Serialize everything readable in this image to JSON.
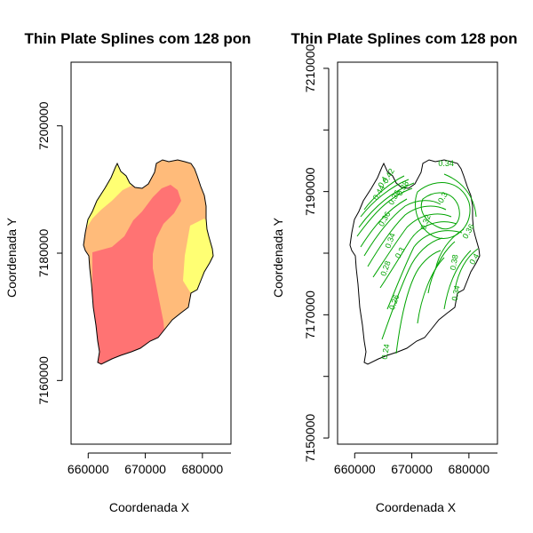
{
  "chart_data": [
    {
      "type": "heatmap",
      "title": "Thin Plate Splines com 128 pon",
      "xlabel": "Coordenada X",
      "ylabel": "Coordenada Y",
      "xlim": [
        657000,
        685000
      ],
      "ylim": [
        7150000,
        7210000
      ],
      "x_ticks": [
        660000,
        670000,
        680000
      ],
      "y_ticks": [
        7160000,
        7180000,
        7200000
      ],
      "colors": {
        "low": "#ff7373",
        "mid": "#ffbb7a",
        "high": "#ffff73"
      },
      "zones": [
        {
          "level": "high",
          "color": "#ffff73"
        },
        {
          "level": "mid",
          "color": "#ffbb7a"
        },
        {
          "level": "low",
          "color": "#ff7373"
        }
      ]
    },
    {
      "type": "contour",
      "title": "Thin Plate Splines com 128 pon",
      "xlabel": "Coordenada X",
      "ylabel": "Coordenada Y",
      "xlim": [
        657000,
        685000
      ],
      "ylim": [
        7149000,
        7211000
      ],
      "x_ticks": [
        660000,
        670000,
        680000
      ],
      "y_ticks": [
        7150000,
        7160000,
        7170000,
        7180000,
        7190000,
        7200000,
        7210000
      ],
      "y_tick_labels": [
        "7150000",
        "7170000",
        "7190000",
        "7210000"
      ],
      "line_color": "#00a400",
      "contour_levels": [
        0.24,
        0.26,
        0.28,
        0.3,
        0.32,
        0.34,
        0.36,
        0.38,
        0.4,
        0.42,
        0.44
      ],
      "contour_labels": [
        {
          "text": "0.34",
          "x": 676000,
          "y": 7194500
        },
        {
          "text": "0.3",
          "x": 675500,
          "y": 7189000
        },
        {
          "text": "0.32",
          "x": 672500,
          "y": 7185000
        },
        {
          "text": "0.36",
          "x": 667000,
          "y": 7189000
        },
        {
          "text": "0.38",
          "x": 668500,
          "y": 7190500
        },
        {
          "text": "0.4",
          "x": 665000,
          "y": 7191500
        },
        {
          "text": "0.42",
          "x": 666000,
          "y": 7192500
        },
        {
          "text": "0.44",
          "x": 664300,
          "y": 7189800
        },
        {
          "text": "0.36",
          "x": 665300,
          "y": 7185500
        },
        {
          "text": "0.34",
          "x": 666300,
          "y": 7182000
        },
        {
          "text": "0.3",
          "x": 668000,
          "y": 7180000
        },
        {
          "text": "0.28",
          "x": 665500,
          "y": 7177500
        },
        {
          "text": "0.26",
          "x": 667000,
          "y": 7172000
        },
        {
          "text": "0.24",
          "x": 665500,
          "y": 7164000
        },
        {
          "text": "0.36",
          "x": 680000,
          "y": 7183500
        },
        {
          "text": "0.38",
          "x": 677500,
          "y": 7178500
        },
        {
          "text": "0.4",
          "x": 681000,
          "y": 7179000
        },
        {
          "text": "0.34",
          "x": 677800,
          "y": 7173500
        }
      ]
    }
  ]
}
